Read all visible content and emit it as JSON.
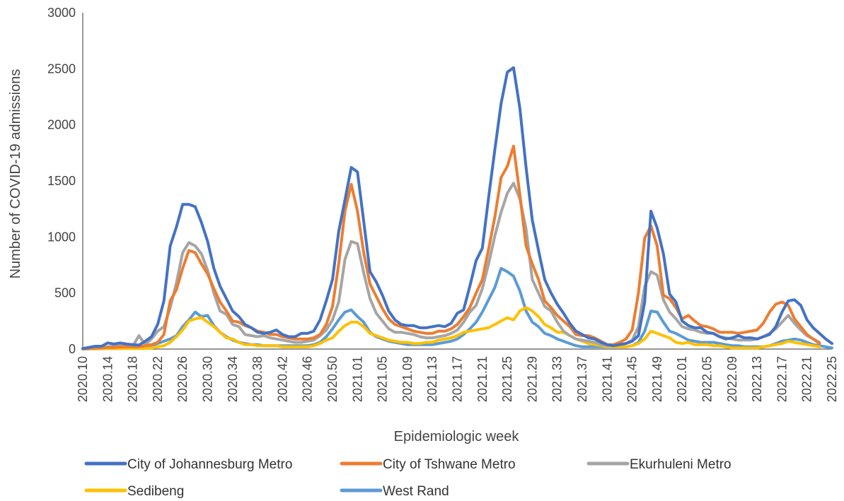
{
  "chart_data": {
    "type": "line",
    "title": "",
    "xlabel": "Epidemiologic week",
    "ylabel": "Number of COVID-19 admissions",
    "ylim": [
      0,
      3000
    ],
    "yticks": [
      0,
      500,
      1000,
      1500,
      2000,
      2500,
      3000
    ],
    "grid": false,
    "legend_position": "bottom",
    "x_tick_labels": [
      "2020.10",
      "2020.14",
      "2020.18",
      "2020.22",
      "2020.26",
      "2020.30",
      "2020.34",
      "2020.38",
      "2020.42",
      "2020.46",
      "2020.50",
      "2021.01",
      "2021.05",
      "2021.09",
      "2021.13",
      "2021.17",
      "2021.21",
      "2021.25",
      "2021.29",
      "2021.33",
      "2021.37",
      "2021.41",
      "2021.45",
      "2021.49",
      "2022.01",
      "2022.05",
      "2022.09",
      "2022.13",
      "2022.17",
      "2022.21",
      "2022.25"
    ],
    "series": [
      {
        "name": "City of Johannesburg Metro",
        "color": "#4472C4",
        "values": [
          5,
          15,
          25,
          25,
          55,
          45,
          55,
          45,
          40,
          35,
          70,
          110,
          220,
          430,
          920,
          1090,
          1290,
          1290,
          1270,
          1130,
          960,
          720,
          560,
          450,
          340,
          290,
          220,
          190,
          150,
          140,
          150,
          170,
          130,
          110,
          110,
          140,
          140,
          160,
          260,
          430,
          620,
          1050,
          1330,
          1620,
          1580,
          1140,
          690,
          600,
          480,
          340,
          260,
          220,
          210,
          210,
          190,
          190,
          200,
          210,
          200,
          230,
          320,
          350,
          560,
          790,
          900,
          1350,
          1780,
          2190,
          2470,
          2510,
          2150,
          1620,
          1150,
          880,
          620,
          500,
          400,
          320,
          230,
          160,
          130,
          100,
          90,
          60,
          40,
          30,
          40,
          50,
          70,
          120,
          420,
          1230,
          1080,
          850,
          490,
          420,
          250,
          210,
          190,
          190,
          150,
          140,
          110,
          90,
          100,
          120,
          100,
          100,
          90,
          110,
          130,
          200,
          330,
          430,
          440,
          390,
          260,
          190,
          140,
          90,
          50
        ]
      },
      {
        "name": "City of Tshwane Metro",
        "color": "#ED7D31",
        "values": [
          2,
          5,
          8,
          10,
          15,
          15,
          20,
          20,
          20,
          20,
          30,
          40,
          60,
          130,
          430,
          530,
          720,
          880,
          860,
          760,
          670,
          540,
          420,
          340,
          250,
          240,
          210,
          190,
          160,
          150,
          130,
          130,
          110,
          100,
          90,
          90,
          90,
          100,
          130,
          220,
          380,
          760,
          1230,
          1470,
          1230,
          860,
          580,
          470,
          360,
          270,
          220,
          200,
          180,
          160,
          150,
          140,
          140,
          160,
          160,
          180,
          220,
          290,
          370,
          500,
          620,
          890,
          1180,
          1530,
          1630,
          1810,
          1380,
          920,
          760,
          620,
          430,
          370,
          300,
          250,
          200,
          130,
          120,
          120,
          100,
          70,
          40,
          40,
          60,
          90,
          170,
          500,
          990,
          1100,
          920,
          480,
          450,
          370,
          270,
          300,
          250,
          210,
          200,
          180,
          150,
          150,
          150,
          140,
          150,
          160,
          170,
          230,
          330,
          400,
          420,
          390,
          270,
          200,
          130,
          90,
          50
        ]
      },
      {
        "name": "Ekurhuleni Metro",
        "color": "#A5A5A5",
        "values": [
          2,
          5,
          8,
          10,
          20,
          25,
          30,
          25,
          25,
          120,
          40,
          90,
          160,
          200,
          370,
          590,
          860,
          950,
          920,
          850,
          700,
          500,
          340,
          310,
          220,
          200,
          130,
          120,
          110,
          120,
          100,
          90,
          80,
          70,
          60,
          60,
          70,
          80,
          120,
          170,
          260,
          420,
          800,
          960,
          940,
          680,
          450,
          320,
          250,
          180,
          150,
          150,
          140,
          130,
          110,
          100,
          100,
          110,
          120,
          140,
          170,
          240,
          330,
          390,
          540,
          760,
          1010,
          1220,
          1390,
          1480,
          1340,
          1070,
          620,
          500,
          380,
          340,
          240,
          160,
          120,
          90,
          80,
          70,
          60,
          40,
          30,
          30,
          40,
          50,
          80,
          200,
          560,
          690,
          660,
          440,
          330,
          270,
          200,
          180,
          170,
          150,
          140,
          140,
          110,
          100,
          90,
          80,
          80,
          80,
          90,
          110,
          140,
          180,
          240,
          300,
          230,
          170,
          120,
          90,
          60
        ]
      },
      {
        "name": "Sedibeng",
        "color": "#FFC000",
        "values": [
          1,
          2,
          3,
          4,
          5,
          5,
          5,
          5,
          5,
          5,
          5,
          10,
          20,
          30,
          60,
          110,
          170,
          250,
          270,
          280,
          240,
          200,
          150,
          100,
          90,
          60,
          40,
          40,
          30,
          30,
          30,
          30,
          20,
          20,
          20,
          20,
          20,
          30,
          50,
          80,
          100,
          160,
          210,
          240,
          240,
          200,
          140,
          120,
          100,
          80,
          70,
          60,
          60,
          50,
          50,
          60,
          60,
          80,
          90,
          100,
          120,
          150,
          160,
          170,
          180,
          190,
          220,
          250,
          280,
          260,
          340,
          370,
          340,
          290,
          220,
          190,
          150,
          150,
          120,
          90,
          70,
          50,
          40,
          30,
          20,
          20,
          20,
          20,
          30,
          50,
          90,
          160,
          140,
          120,
          100,
          60,
          50,
          60,
          40,
          40,
          40,
          30,
          30,
          20,
          10,
          10,
          10,
          10,
          10,
          20,
          30,
          40,
          50,
          70,
          60,
          50,
          40,
          30,
          20
        ]
      },
      {
        "name": "West Rand",
        "color": "#5B9BD5",
        "values": [
          1,
          2,
          3,
          4,
          5,
          5,
          5,
          10,
          10,
          10,
          20,
          30,
          50,
          70,
          90,
          120,
          200,
          260,
          330,
          290,
          300,
          210,
          150,
          110,
          80,
          60,
          50,
          40,
          40,
          30,
          30,
          30,
          30,
          30,
          30,
          30,
          30,
          40,
          60,
          110,
          180,
          260,
          330,
          350,
          290,
          240,
          150,
          110,
          90,
          70,
          60,
          50,
          40,
          40,
          40,
          40,
          40,
          50,
          60,
          70,
          90,
          130,
          180,
          240,
          330,
          440,
          550,
          720,
          690,
          650,
          520,
          340,
          240,
          200,
          140,
          120,
          90,
          70,
          50,
          30,
          20,
          20,
          20,
          20,
          20,
          20,
          20,
          20,
          30,
          60,
          160,
          340,
          330,
          240,
          160,
          140,
          110,
          80,
          70,
          60,
          60,
          60,
          50,
          40,
          30,
          30,
          20,
          20,
          20,
          20,
          30,
          50,
          70,
          80,
          90,
          80,
          60,
          40,
          30,
          20,
          10
        ]
      }
    ]
  }
}
